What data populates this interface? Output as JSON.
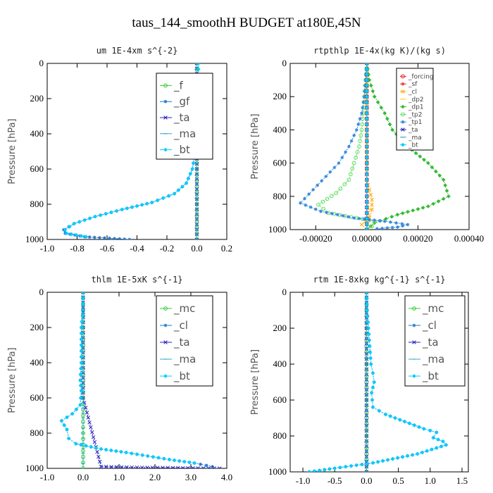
{
  "title": "taus_144_smoothH  BUDGET at180E,45N",
  "chart_data": [
    {
      "type": "line",
      "title": "um  1E-4xm s^{-2}",
      "ylabel": "Pressure [hPa]",
      "xlim": [
        -1.0,
        0.2
      ],
      "ylim": [
        1000,
        0
      ],
      "xticks": [
        "-1.0",
        "-0.8",
        "-0.6",
        "-0.4",
        "-0.2",
        "0.0",
        "0.2"
      ],
      "xtick_values": [
        -1.0,
        -0.8,
        -0.6,
        -0.4,
        -0.2,
        0.0,
        0.2
      ],
      "yticks": [
        0,
        200,
        400,
        600,
        800,
        1000
      ],
      "legend": "top-right",
      "series": [
        {
          "name": "_f",
          "color": "#33cc33",
          "x": [
            0,
            0,
            0,
            0,
            0,
            0,
            0,
            0,
            0,
            0,
            0
          ],
          "y": [
            0,
            100,
            200,
            300,
            400,
            500,
            600,
            700,
            800,
            900,
            1000
          ]
        },
        {
          "name": "_gf",
          "color": "#1f77d0",
          "x": [
            0.01,
            0.01,
            -0.02,
            0.0,
            0.0,
            -0.01,
            -0.03,
            -0.07,
            -0.15,
            -0.3,
            -0.5,
            -0.68,
            -0.82,
            -0.89,
            -0.88,
            -0.75,
            -0.45
          ],
          "y": [
            0,
            100,
            200,
            300,
            400,
            500,
            600,
            680,
            740,
            790,
            830,
            870,
            910,
            945,
            965,
            985,
            1000
          ]
        },
        {
          "name": "_ta",
          "color": "#2222bb",
          "x": [
            0,
            0,
            0,
            0,
            0,
            0
          ],
          "y": [
            0,
            200,
            400,
            600,
            800,
            1000
          ]
        },
        {
          "name": "_ma",
          "color": "#33aacc",
          "x": [
            0,
            0,
            0,
            0,
            0,
            0
          ],
          "y": [
            0,
            200,
            400,
            600,
            800,
            1000
          ]
        },
        {
          "name": "_bt",
          "color": "#00ccff",
          "x": [
            0.01,
            0.01,
            0.0,
            0.0,
            0.0,
            -0.01,
            -0.03,
            -0.07,
            -0.15,
            -0.3,
            -0.5,
            -0.68,
            -0.82,
            -0.88,
            -0.87,
            -0.74
          ],
          "y": [
            0,
            100,
            200,
            300,
            400,
            500,
            600,
            680,
            740,
            790,
            830,
            870,
            910,
            945,
            965,
            985
          ]
        }
      ]
    },
    {
      "type": "line",
      "title": "rtpthlp  1E-4x(kg K)/(kg s)",
      "ylabel": "Pressure [hPa]",
      "xlim": [
        -0.0003,
        0.0004
      ],
      "ylim": [
        1000,
        0
      ],
      "xticks": [
        "-0.00020",
        "0.00000",
        "0.00020",
        "0.00040"
      ],
      "xtick_values": [
        -0.0002,
        0.0,
        0.0002,
        0.0004
      ],
      "yticks": [
        0,
        200,
        400,
        600,
        800,
        1000
      ],
      "legend": "top-right",
      "series": [
        {
          "name": "_forcing",
          "color": "#ee2222",
          "x": [
            0,
            0,
            0,
            0,
            0,
            0,
            0,
            0,
            0,
            0,
            0
          ],
          "y": [
            0,
            100,
            200,
            300,
            400,
            500,
            600,
            700,
            800,
            900,
            1000
          ]
        },
        {
          "name": "_sf",
          "color": "#ff3333",
          "x": [
            0,
            0,
            0,
            0,
            0,
            0
          ],
          "y": [
            0,
            200,
            400,
            600,
            800,
            1000
          ]
        },
        {
          "name": "_cl",
          "color": "#ffaa00",
          "x": [
            0,
            0,
            1e-05,
            2e-05,
            2e-05,
            1e-05,
            -2e-05,
            0
          ],
          "y": [
            0,
            700,
            760,
            820,
            880,
            930,
            970,
            1000
          ]
        },
        {
          "name": "_dp2",
          "color": "#ffcc44",
          "x": [
            0,
            0,
            1e-05,
            1e-05,
            0
          ],
          "y": [
            0,
            800,
            880,
            950,
            1000
          ]
        },
        {
          "name": "_dp1",
          "color": "#33bb33",
          "x": [
            0,
            1e-05,
            3e-05,
            7e-05,
            0.0001,
            0.00016,
            0.00024,
            0.0003,
            0.00032,
            0.00024,
            0.00012,
            3e-05,
            0
          ],
          "y": [
            0,
            100,
            200,
            300,
            400,
            500,
            600,
            700,
            800,
            860,
            910,
            960,
            1000
          ]
        },
        {
          "name": "_tp2",
          "color": "#66dd66",
          "x": [
            0,
            -1e-05,
            -2e-05,
            -3e-05,
            -5e-05,
            -7e-05,
            -0.00012,
            -0.00019,
            -0.00015,
            -4e-05,
            3e-05,
            2e-05,
            0
          ],
          "y": [
            0,
            200,
            400,
            500,
            600,
            700,
            780,
            850,
            900,
            930,
            950,
            980,
            1000
          ]
        },
        {
          "name": "_tp1",
          "color": "#3388dd",
          "x": [
            0,
            -1e-05,
            -2e-05,
            -4e-05,
            -7e-05,
            -0.00011,
            -0.00016,
            -0.00021,
            -0.00026,
            -0.00018,
            -5e-05,
            7e-05,
            0.00016,
            0.00012,
            4e-05
          ],
          "y": [
            0,
            200,
            300,
            400,
            500,
            600,
            680,
            760,
            840,
            890,
            930,
            950,
            970,
            985,
            995
          ]
        },
        {
          "name": "_ta",
          "color": "#2222bb",
          "x": [
            0,
            0,
            0,
            0,
            0,
            0
          ],
          "y": [
            0,
            200,
            400,
            600,
            800,
            1000
          ]
        },
        {
          "name": "_ma",
          "color": "#33aacc",
          "x": [
            0,
            0,
            0,
            0,
            0,
            0
          ],
          "y": [
            0,
            200,
            400,
            600,
            800,
            1000
          ]
        },
        {
          "name": "_bt",
          "color": "#00ccff",
          "x": [
            0,
            0,
            0,
            0,
            0,
            0
          ],
          "y": [
            0,
            200,
            400,
            600,
            800,
            1000
          ]
        }
      ]
    },
    {
      "type": "line",
      "title": "thlm  1E-5xK s^{-1}",
      "ylabel": "Pressure [hPa]",
      "xlim": [
        -1.0,
        4.0
      ],
      "ylim": [
        1000,
        0
      ],
      "xticks": [
        "-1.0",
        "0.0",
        "1.0",
        "2.0",
        "3.0",
        "4.0"
      ],
      "xtick_values": [
        -1.0,
        0.0,
        1.0,
        2.0,
        3.0,
        4.0
      ],
      "yticks": [
        0,
        200,
        400,
        600,
        800,
        1000
      ],
      "legend": "top-right",
      "series": [
        {
          "name": "_mc",
          "color": "#33cc33",
          "x": [
            0,
            0,
            0,
            0,
            0,
            0,
            0,
            0,
            0,
            0,
            0
          ],
          "y": [
            0,
            100,
            200,
            300,
            400,
            500,
            600,
            700,
            800,
            900,
            1000
          ]
        },
        {
          "name": "_cl",
          "color": "#1f77d0",
          "x": [
            0,
            0,
            -0.05,
            -0.05,
            -0.05,
            -0.08,
            -0.05,
            -0.08,
            -0.3,
            -0.6,
            -0.45,
            -0.4,
            -0.2,
            0.5,
            1.2,
            1.8,
            2.4,
            3.1,
            3.6
          ],
          "y": [
            0,
            100,
            200,
            300,
            400,
            500,
            560,
            640,
            690,
            730,
            780,
            830,
            860,
            890,
            910,
            930,
            950,
            970,
            990
          ]
        },
        {
          "name": "_ta",
          "color": "#2222bb",
          "x": [
            0,
            0,
            0,
            0,
            0.5,
            1.5,
            2.5,
            3.2,
            3.8
          ],
          "y": [
            0,
            200,
            400,
            600,
            990,
            995,
            997,
            999,
            1000
          ]
        },
        {
          "name": "_ma",
          "color": "#33aacc",
          "x": [
            0,
            0,
            0,
            0,
            0,
            0
          ],
          "y": [
            0,
            200,
            400,
            600,
            800,
            1000
          ]
        },
        {
          "name": "_bt",
          "color": "#00ccff",
          "x": [
            0,
            0,
            -0.05,
            -0.05,
            -0.05,
            -0.08,
            -0.05,
            -0.08,
            -0.3,
            -0.6,
            -0.45,
            -0.4,
            -0.2,
            0.5,
            1.2,
            1.8,
            2.4,
            3.1
          ],
          "y": [
            0,
            100,
            200,
            300,
            400,
            500,
            560,
            640,
            690,
            730,
            780,
            830,
            860,
            890,
            910,
            930,
            950,
            970
          ]
        }
      ]
    },
    {
      "type": "line",
      "title": "rtm  1E-8xkg kg^{-1} s^{-1}",
      "ylabel": "Pressure [hPa]",
      "xlim": [
        -1.2,
        1.6
      ],
      "ylim": [
        1000,
        0
      ],
      "xticks": [
        "-1.0",
        "-0.5",
        "0.0",
        "0.5",
        "1.0",
        "1.5"
      ],
      "xtick_values": [
        -1.0,
        -0.5,
        0.0,
        0.5,
        1.0,
        1.5
      ],
      "yticks": [
        0,
        200,
        400,
        600,
        800,
        1000
      ],
      "legend": "top-right",
      "series": [
        {
          "name": "_mc",
          "color": "#33cc33",
          "x": [
            0,
            0,
            0,
            0,
            0,
            0,
            0,
            0,
            0,
            0,
            0
          ],
          "y": [
            0,
            100,
            200,
            300,
            400,
            500,
            600,
            700,
            800,
            900,
            1000
          ]
        },
        {
          "name": "_cl",
          "color": "#1f77d0",
          "x": [
            0,
            0.01,
            0.03,
            0.05,
            0.07,
            0.1,
            0.12,
            0.08,
            0.1,
            0.3,
            0.6,
            0.9,
            1.1,
            1.05,
            1.2,
            1.25,
            0.8,
            0.1,
            -0.5,
            -0.9
          ],
          "y": [
            0,
            100,
            200,
            300,
            400,
            450,
            500,
            560,
            640,
            680,
            720,
            760,
            780,
            810,
            830,
            850,
            900,
            950,
            980,
            1000
          ]
        },
        {
          "name": "_ta",
          "color": "#2222bb",
          "x": [
            0,
            0,
            0,
            0,
            0,
            0
          ],
          "y": [
            0,
            200,
            400,
            600,
            800,
            1000
          ]
        },
        {
          "name": "_ma",
          "color": "#33aacc",
          "x": [
            0,
            0,
            0,
            0,
            0,
            0
          ],
          "y": [
            0,
            200,
            400,
            600,
            800,
            1000
          ]
        },
        {
          "name": "_bt",
          "color": "#00ccff",
          "x": [
            0,
            0.01,
            0.03,
            0.05,
            0.07,
            0.1,
            0.12,
            0.08,
            0.1,
            0.3,
            0.6,
            0.9,
            1.1,
            1.05,
            1.2,
            1.25,
            0.8,
            0.1,
            -0.5,
            -0.9
          ],
          "y": [
            0,
            100,
            200,
            300,
            400,
            450,
            500,
            560,
            640,
            680,
            720,
            760,
            780,
            810,
            830,
            850,
            900,
            950,
            980,
            1000
          ]
        }
      ]
    }
  ]
}
